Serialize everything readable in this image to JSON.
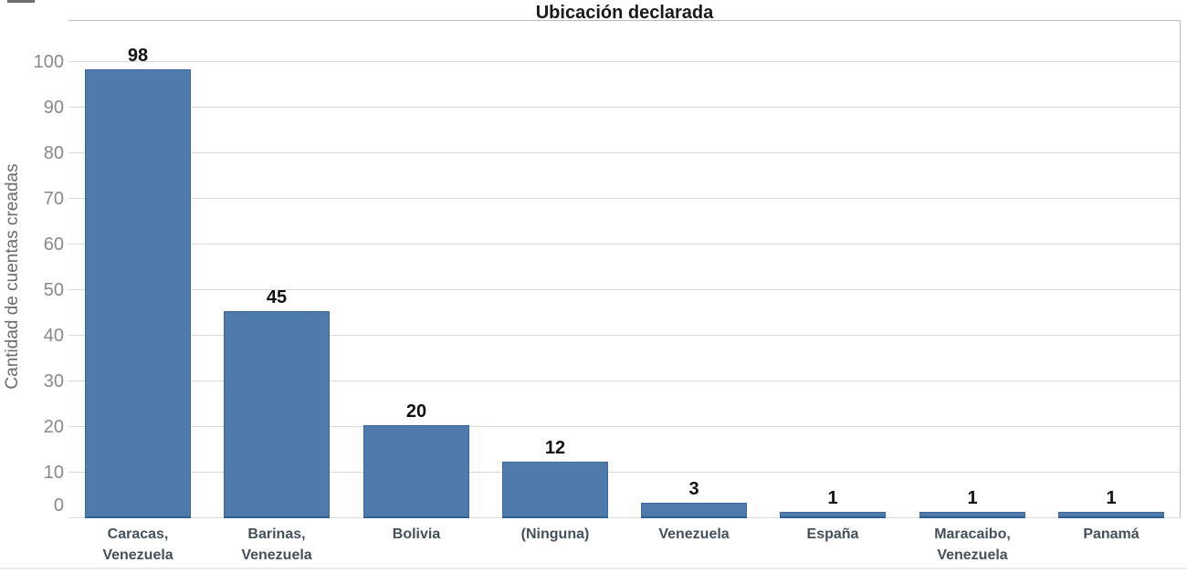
{
  "page": {
    "background": "#ffffff"
  },
  "chart_data": {
    "type": "bar",
    "title": "Ubicación declarada",
    "xlabel": "",
    "ylabel": "Cantidad de cuentas creadas",
    "categories": [
      "Caracas, Venezuela",
      "Barinas, Venezuela",
      "Bolivia",
      "(Ninguna)",
      "Venezuela",
      "España",
      "Maracaibo, Venezuela",
      "Panamá"
    ],
    "category_label_lines": [
      [
        "Caracas,",
        "Venezuela"
      ],
      [
        "Barinas,",
        "Venezuela"
      ],
      [
        "Bolivia"
      ],
      [
        "(Ninguna)"
      ],
      [
        "Venezuela"
      ],
      [
        "España"
      ],
      [
        "Maracaibo,",
        "Venezuela"
      ],
      [
        "Panamá"
      ]
    ],
    "values": [
      98,
      45,
      20,
      12,
      3,
      1,
      1,
      1
    ],
    "value_labels": [
      "98",
      "45",
      "20",
      "12",
      "3",
      "1",
      "1",
      "1"
    ],
    "yticks": [
      0,
      10,
      20,
      30,
      40,
      50,
      60,
      70,
      80,
      90,
      100
    ],
    "ylim": [
      0,
      109
    ],
    "grid": true,
    "legend": "none",
    "colors": {
      "bar_fill": "#4e7bab",
      "bar_border": "#3a679c",
      "bar_border_bottom": "#30608f",
      "gridline": "#dadada",
      "plot_border": "#bcbcbc",
      "tick_label": "#898989",
      "axis_title": "#6b6b6b",
      "category_label": "#44505c",
      "value_label": "#111111",
      "title": "#1a1a1a"
    }
  }
}
